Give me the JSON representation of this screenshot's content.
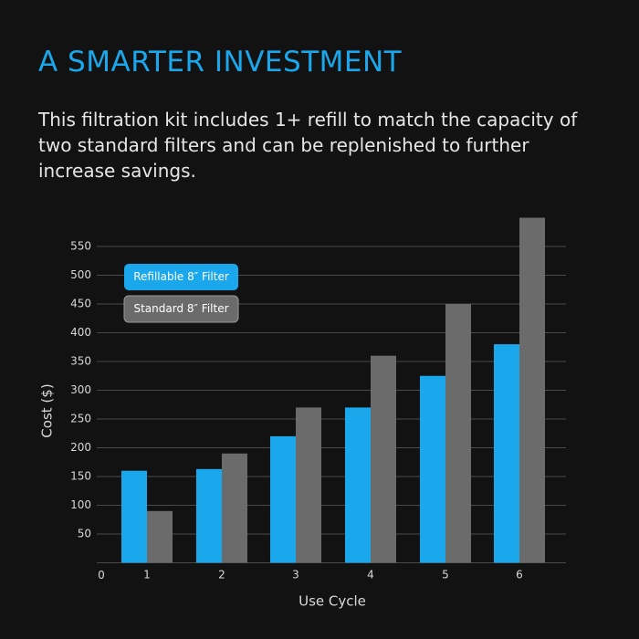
{
  "chart_data": {
    "type": "bar",
    "title": "A SMARTER INVESTMENT",
    "subtitle": "This filtration kit includes 1+ refill to match the capacity of two standard filters and can be replenished to further increase savings.",
    "x_label": "Use Cycle",
    "y_label": "Cost ($)",
    "categories": [
      "1",
      "2",
      "3",
      "4",
      "5",
      "6"
    ],
    "series": [
      {
        "name": "Refillable 8″ Filter",
        "color": "#1aa7ec",
        "values": [
          160,
          163,
          220,
          270,
          325,
          380
        ]
      },
      {
        "name": "Standard 8″ Filter",
        "color": "#6b6b6b",
        "values": [
          90,
          190,
          270,
          360,
          450,
          600
        ]
      }
    ],
    "ylim": [
      0,
      600
    ],
    "yticks": [
      0,
      50,
      100,
      150,
      200,
      250,
      300,
      350,
      400,
      450,
      500,
      550
    ],
    "grid": true,
    "legend": "upper-left"
  }
}
